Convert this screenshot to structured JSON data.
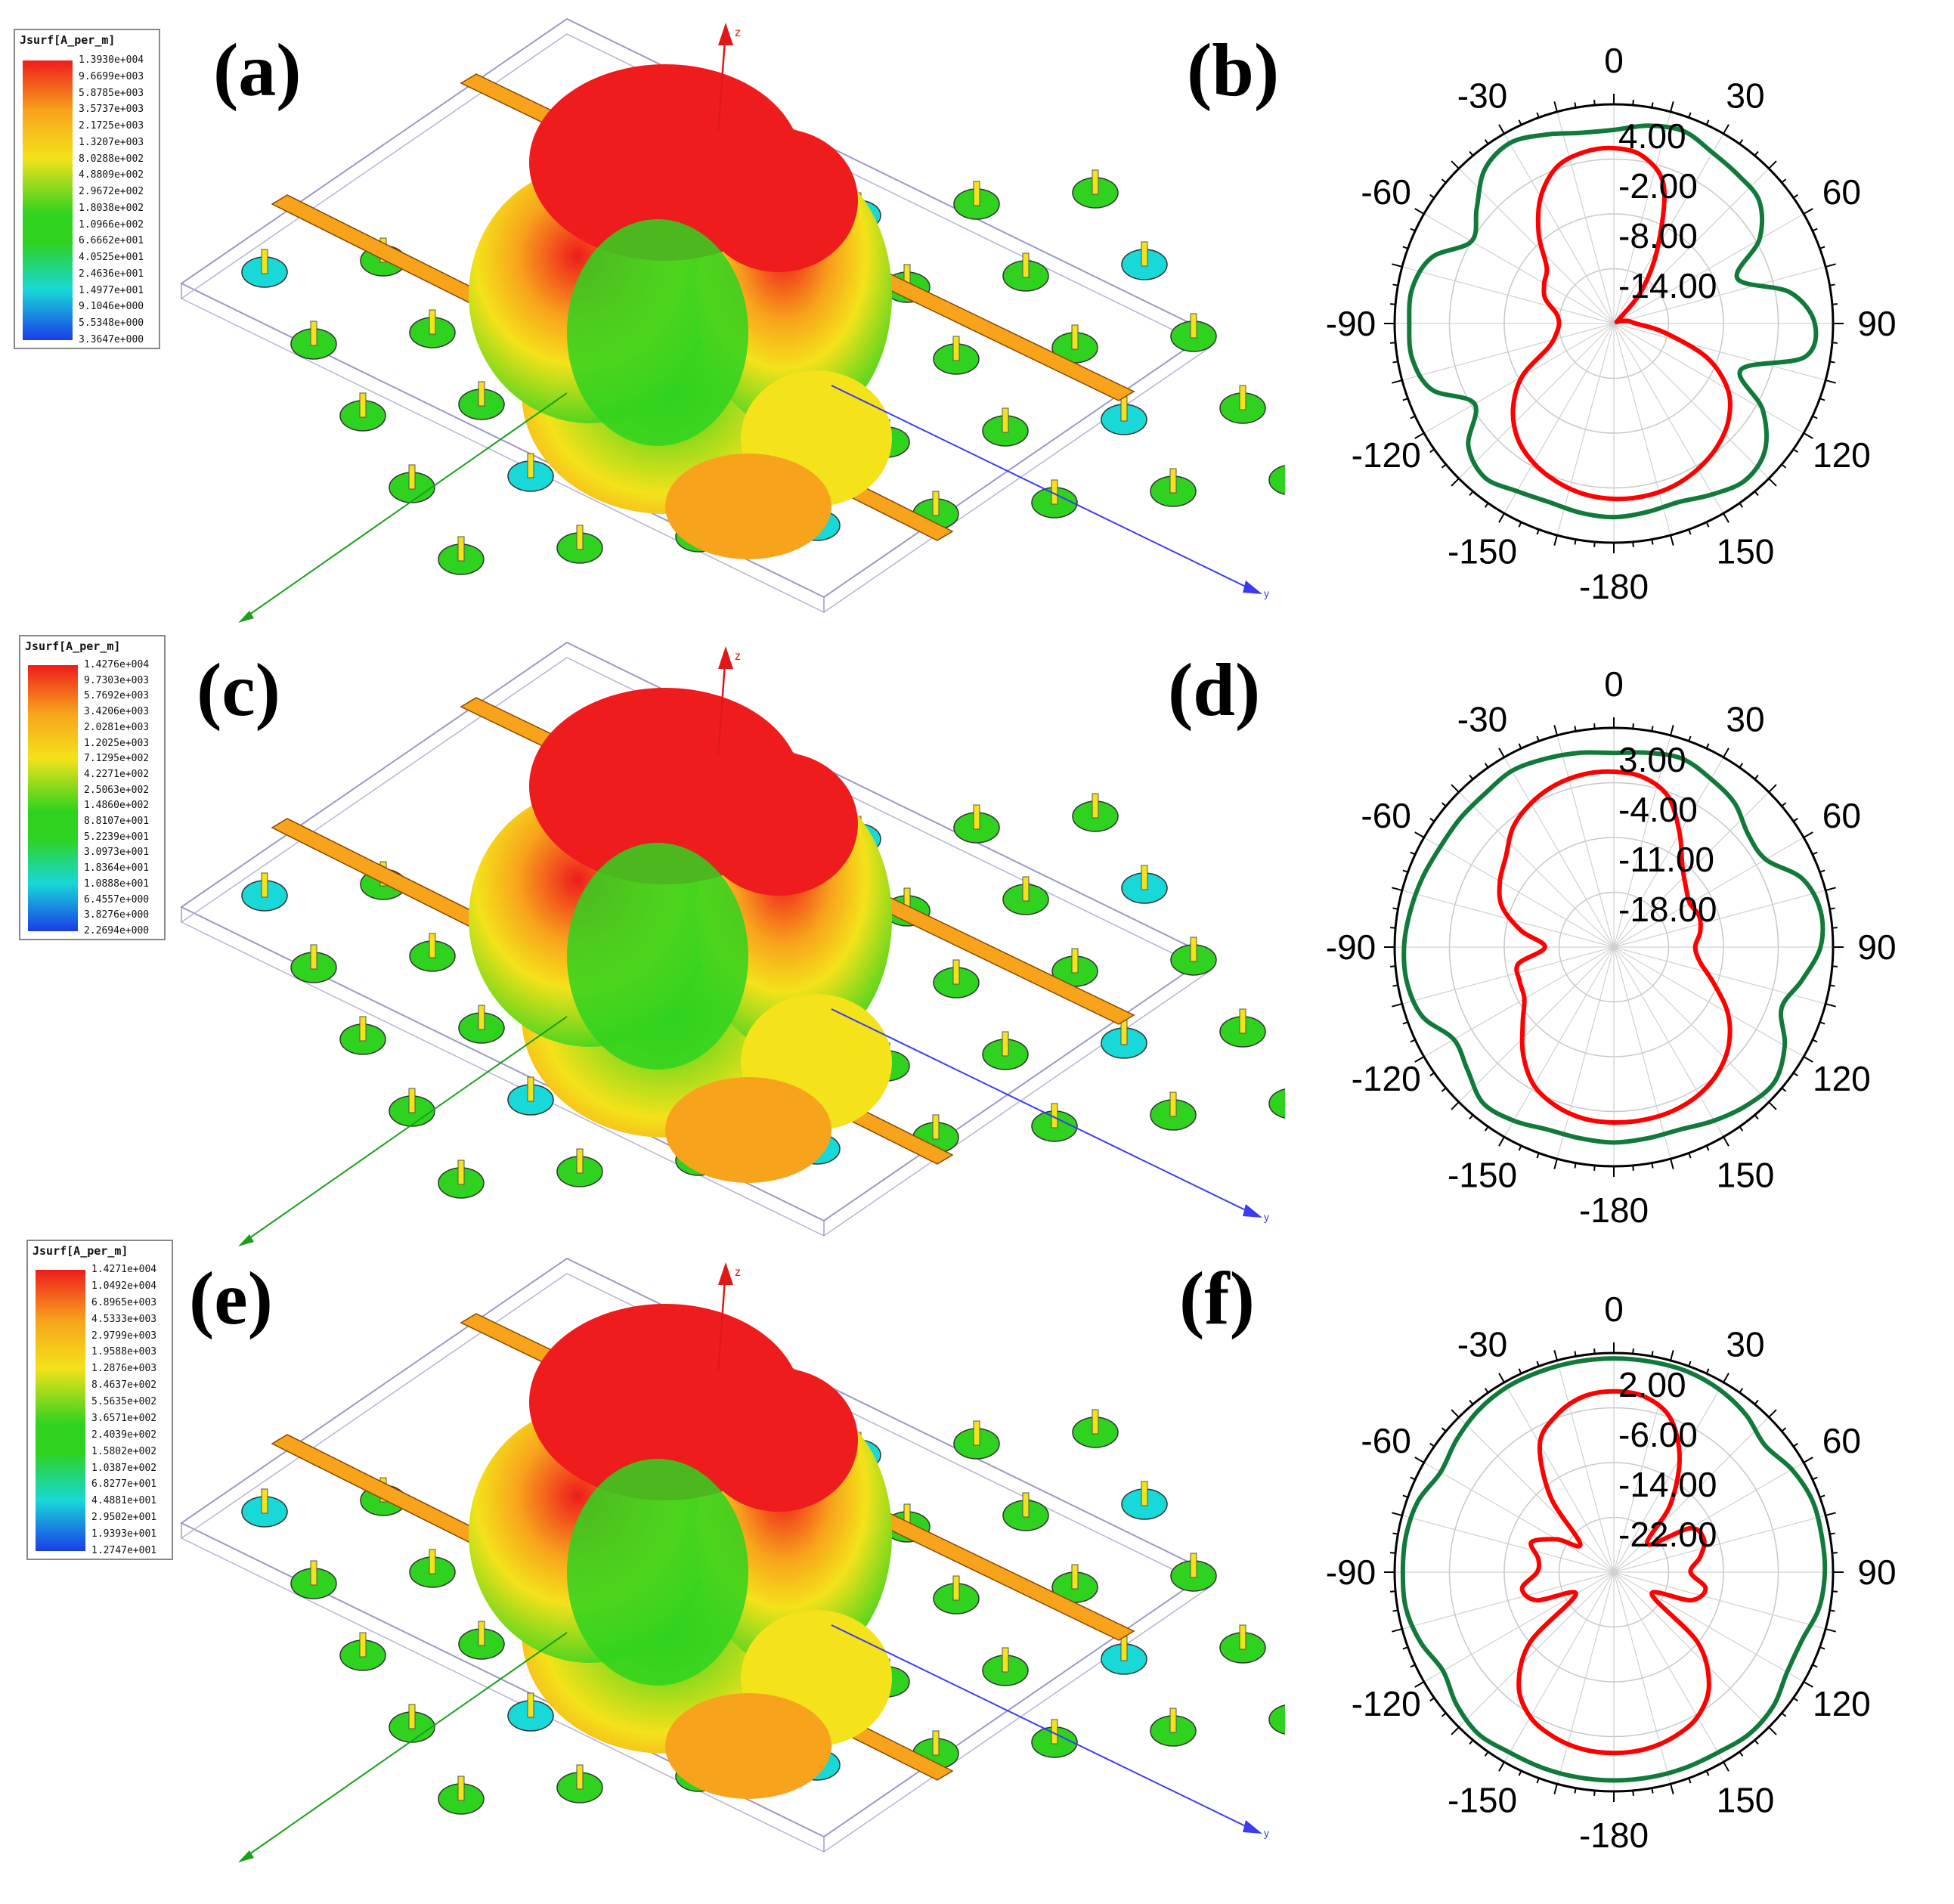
{
  "panels": [
    {
      "label": "(a)",
      "legend": {
        "title": "Jsurf[A_per_m]",
        "values": [
          "1.3930e+004",
          "9.6699e+003",
          "5.8785e+003",
          "3.5737e+003",
          "2.1725e+003",
          "1.3207e+003",
          "8.0288e+002",
          "4.8809e+002",
          "2.9672e+002",
          "1.8038e+002",
          "1.0966e+002",
          "6.6662e+001",
          "4.0525e+001",
          "2.4636e+001",
          "1.4977e+001",
          "9.1046e+000",
          "5.5348e+000",
          "3.3647e+000"
        ]
      },
      "axes": {
        "z": "z",
        "y": "y"
      }
    },
    {
      "label": "(c)",
      "legend": {
        "title": "Jsurf[A_per_m]",
        "values": [
          "1.4276e+004",
          "9.7303e+003",
          "5.7692e+003",
          "3.4206e+003",
          "2.0281e+003",
          "1.2025e+003",
          "7.1295e+002",
          "4.2271e+002",
          "2.5063e+002",
          "1.4860e+002",
          "8.8107e+001",
          "5.2239e+001",
          "3.0973e+001",
          "1.8364e+001",
          "1.0888e+001",
          "6.4557e+000",
          "3.8276e+000",
          "2.2694e+000"
        ]
      },
      "axes": {
        "z": "z",
        "y": "y"
      }
    },
    {
      "label": "(e)",
      "legend": {
        "title": "Jsurf[A_per_m]",
        "values": [
          "1.4271e+004",
          "1.0492e+004",
          "6.8965e+003",
          "4.5333e+003",
          "2.9799e+003",
          "1.9588e+003",
          "1.2876e+003",
          "8.4637e+002",
          "5.5635e+002",
          "3.6571e+002",
          "2.4039e+002",
          "1.5802e+002",
          "1.0387e+002",
          "6.8277e+001",
          "4.4881e+001",
          "2.9502e+001",
          "1.9393e+001",
          "1.2747e+001"
        ]
      },
      "axes": {
        "z": "z",
        "y": "y"
      }
    }
  ],
  "colors": {
    "hot": "#ee1c1c",
    "warm": "#f8a31c",
    "mid": "#f4e21a",
    "green": "#2fd21f",
    "cyan": "#18d8d8",
    "blue": "#1a3ce8",
    "copol": "#ff0000",
    "xpol": "#117a3a",
    "axis_x": "#1aa01a",
    "axis_y": "#3b3bf0",
    "axis_z": "#e01818"
  },
  "chart_data": [
    {
      "type": "polar",
      "label": "(b)",
      "angle_ticks": [
        "0",
        "30",
        "60",
        "90",
        "120",
        "150",
        "-180",
        "-150",
        "-120",
        "-90",
        "-60",
        "-30"
      ],
      "radial_ticks": [
        "4.00",
        "-2.00",
        "-8.00",
        "-14.00"
      ],
      "r_range": [
        -20,
        10
      ],
      "series": [
        {
          "color": "copol",
          "angles": [
            0,
            10,
            20,
            30,
            40,
            50,
            60,
            70,
            80,
            90,
            100,
            110,
            120,
            130,
            140,
            150,
            160,
            170,
            180,
            190,
            200,
            210,
            220,
            230,
            240,
            250,
            260,
            270,
            280,
            290,
            300,
            310,
            320,
            330,
            340,
            350
          ],
          "values": [
            4.0,
            3.2,
            0.0,
            -8.0,
            -14.0,
            -19.0,
            -19.5,
            -19.0,
            -18.0,
            -17.0,
            -13.0,
            -6.5,
            -2.0,
            0.5,
            2.0,
            3.0,
            3.7,
            4.0,
            4.0,
            3.7,
            3.0,
            2.0,
            0.5,
            -2.0,
            -5.5,
            -10.5,
            -12.0,
            -12.5,
            -12.0,
            -10.0,
            -9.0,
            -8.0,
            -4.0,
            0.0,
            2.8,
            3.8
          ]
        },
        {
          "color": "xpol",
          "angles": [
            0,
            10,
            20,
            30,
            40,
            50,
            60,
            70,
            80,
            90,
            100,
            110,
            120,
            130,
            140,
            150,
            160,
            170,
            180,
            190,
            200,
            210,
            220,
            230,
            240,
            250,
            260,
            270,
            280,
            290,
            300,
            310,
            320,
            330,
            340,
            350
          ],
          "values": [
            6.5,
            7.5,
            8.0,
            7.0,
            6.5,
            6.0,
            3.0,
            -2.0,
            4.5,
            7.5,
            6.5,
            -1.5,
            3.5,
            7.0,
            8.0,
            7.0,
            6.0,
            6.2,
            6.5,
            6.3,
            6.0,
            6.5,
            7.5,
            6.0,
            2.0,
            6.5,
            8.0,
            8.0,
            8.0,
            6.5,
            2.5,
            4.5,
            7.5,
            8.5,
            7.5,
            6.5
          ]
        }
      ]
    },
    {
      "type": "polar",
      "label": "(d)",
      "angle_ticks": [
        "0",
        "30",
        "60",
        "90",
        "120",
        "150",
        "-180",
        "-150",
        "-120",
        "-90",
        "-60",
        "-30"
      ],
      "radial_ticks": [
        "3.00",
        "-4.00",
        "-11.00",
        "-18.00"
      ],
      "r_range": [
        -25,
        10
      ],
      "series": [
        {
          "color": "copol",
          "angles": [
            0,
            10,
            20,
            30,
            40,
            50,
            60,
            70,
            80,
            90,
            100,
            110,
            120,
            130,
            140,
            150,
            160,
            170,
            180,
            190,
            200,
            210,
            220,
            230,
            240,
            250,
            260,
            270,
            280,
            290,
            300,
            310,
            320,
            330,
            340,
            350
          ],
          "values": [
            3.0,
            2.5,
            0.5,
            -4.0,
            -8.0,
            -10.0,
            -11.0,
            -10.5,
            -11.0,
            -12.0,
            -11.0,
            -8.0,
            -4.0,
            -1.0,
            1.0,
            2.2,
            2.8,
            3.0,
            3.0,
            2.8,
            2.0,
            0.5,
            -2.5,
            -6.0,
            -8.5,
            -9.0,
            -9.5,
            -14.0,
            -10.0,
            -6.0,
            -4.0,
            -2.5,
            0.0,
            1.5,
            2.5,
            3.0
          ]
        },
        {
          "color": "xpol",
          "angles": [
            0,
            10,
            20,
            30,
            40,
            50,
            60,
            70,
            80,
            90,
            100,
            110,
            120,
            130,
            140,
            150,
            160,
            170,
            180,
            190,
            200,
            210,
            220,
            230,
            240,
            250,
            260,
            270,
            280,
            290,
            300,
            310,
            320,
            330,
            340,
            350
          ],
          "values": [
            6.0,
            6.5,
            7.0,
            6.0,
            5.0,
            3.0,
            3.0,
            7.0,
            8.5,
            8.0,
            5.5,
            3.5,
            6.5,
            8.5,
            8.0,
            7.0,
            6.0,
            6.0,
            6.2,
            6.0,
            6.0,
            7.0,
            7.5,
            5.5,
            4.5,
            7.5,
            8.5,
            8.5,
            8.0,
            7.5,
            7.0,
            7.0,
            7.0,
            7.5,
            7.0,
            6.5
          ]
        }
      ]
    },
    {
      "type": "polar",
      "label": "(f)",
      "angle_ticks": [
        "0",
        "30",
        "60",
        "90",
        "120",
        "150",
        "-180",
        "-150",
        "-120",
        "-90",
        "-60",
        "-30"
      ],
      "radial_ticks": [
        "2.00",
        "-6.00",
        "-14.00",
        "-22.00"
      ],
      "r_range": [
        -30,
        10
      ],
      "series": [
        {
          "color": "copol",
          "angles": [
            0,
            10,
            20,
            30,
            40,
            50,
            60,
            70,
            80,
            90,
            100,
            110,
            120,
            130,
            140,
            150,
            160,
            170,
            180,
            190,
            200,
            210,
            220,
            230,
            240,
            250,
            260,
            270,
            280,
            290,
            300,
            310,
            320,
            330,
            340,
            350
          ],
          "values": [
            3.0,
            2.5,
            0.0,
            -6.0,
            -14.0,
            -22.0,
            -14.0,
            -12.5,
            -14.0,
            -16.0,
            -13.0,
            -15.0,
            -22.0,
            -10.0,
            -3.0,
            0.5,
            2.0,
            2.8,
            3.0,
            2.8,
            2.0,
            0.5,
            -3.0,
            -10.0,
            -22.0,
            -15.0,
            -13.0,
            -16.0,
            -16.0,
            -14.0,
            -18.0,
            -22.0,
            -12.0,
            -3.0,
            0.5,
            2.5
          ]
        },
        {
          "color": "xpol",
          "angles": [
            0,
            10,
            20,
            30,
            40,
            50,
            60,
            70,
            80,
            90,
            100,
            110,
            120,
            130,
            140,
            150,
            160,
            170,
            180,
            190,
            200,
            210,
            220,
            230,
            240,
            250,
            260,
            270,
            280,
            290,
            300,
            310,
            320,
            330,
            340,
            350
          ],
          "values": [
            9.0,
            9.0,
            9.0,
            8.5,
            7.5,
            6.0,
            7.5,
            8.5,
            8.5,
            8.5,
            8.0,
            6.5,
            6.5,
            8.0,
            8.5,
            8.0,
            8.0,
            8.0,
            8.0,
            8.0,
            8.0,
            8.0,
            8.5,
            7.5,
            6.0,
            7.5,
            8.5,
            8.5,
            8.5,
            8.0,
            6.5,
            7.5,
            8.5,
            9.0,
            9.0,
            9.0
          ]
        }
      ]
    }
  ]
}
